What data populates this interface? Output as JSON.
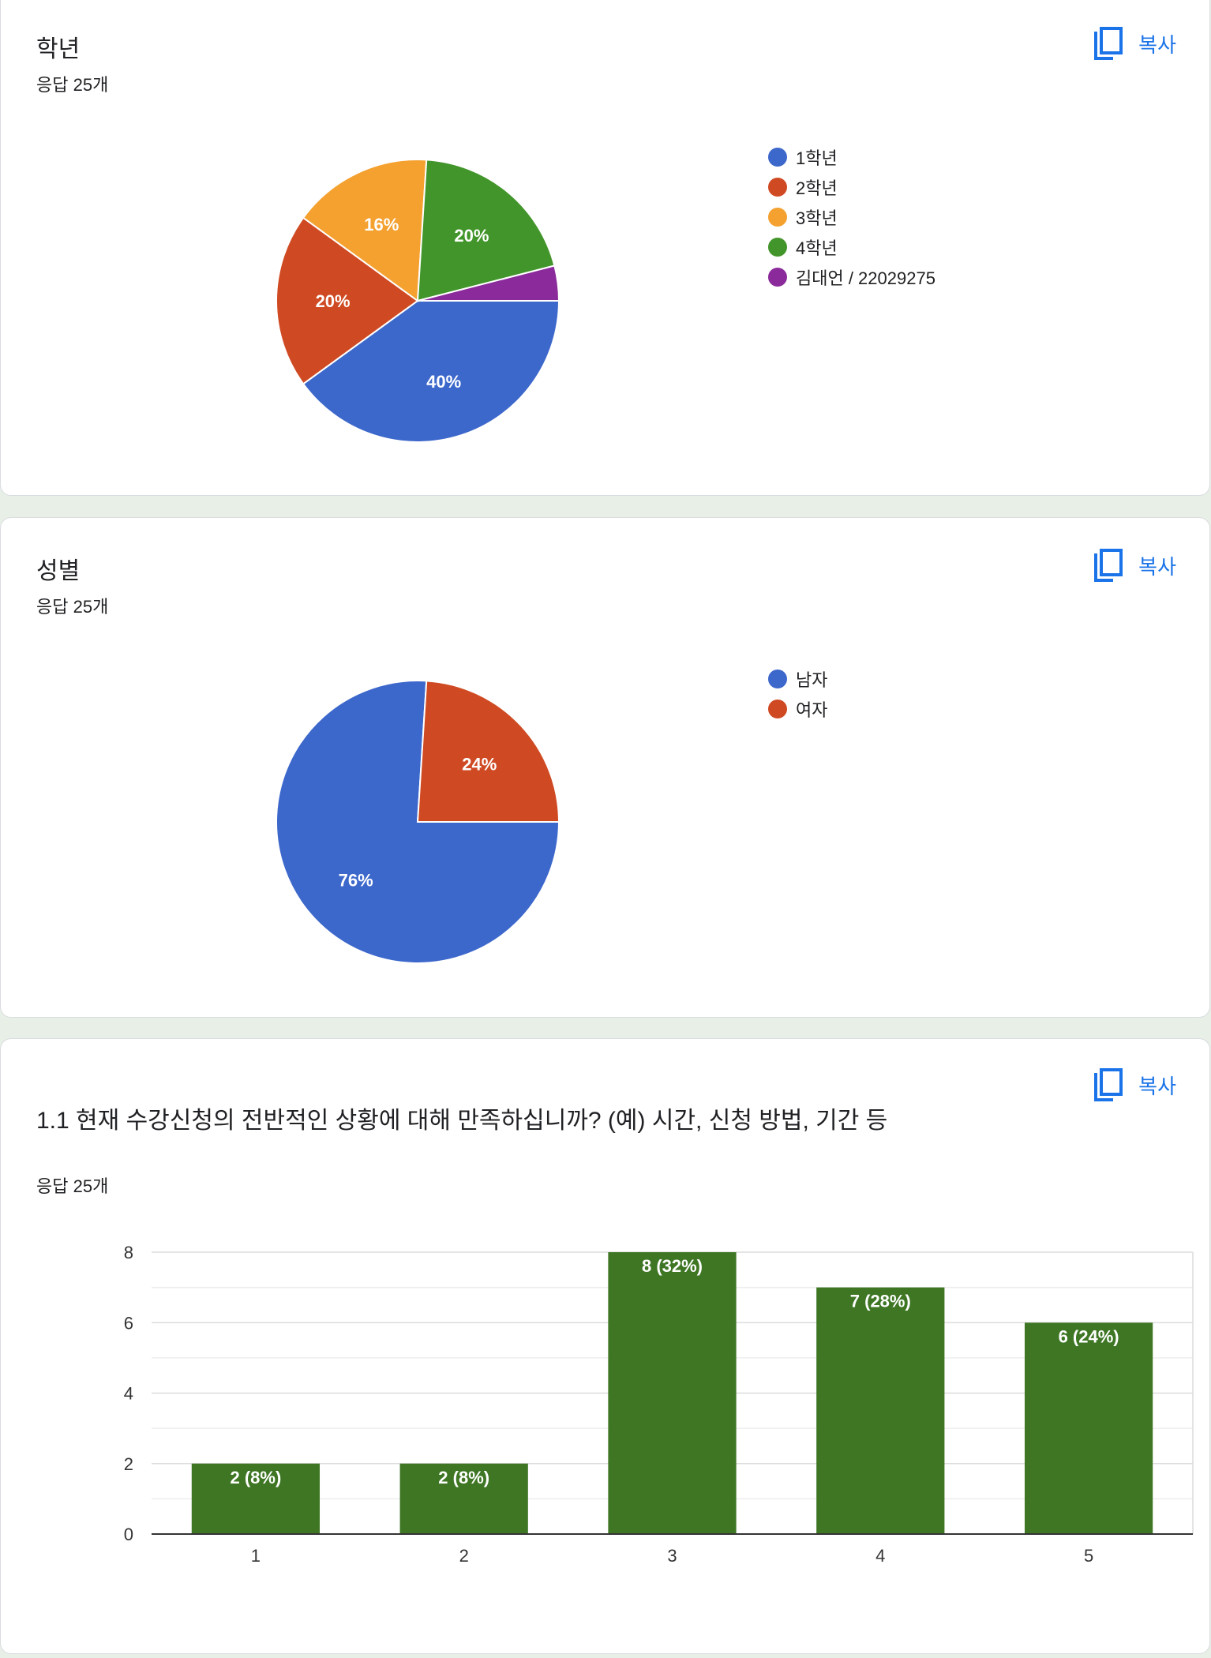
{
  "copy_label": "복사",
  "cards": [
    {
      "title": "학년",
      "responses": "응답 25개",
      "legend": [
        {
          "label": "1학년",
          "color": "#3c67cb"
        },
        {
          "label": "2학년",
          "color": "#cf4a23"
        },
        {
          "label": "3학년",
          "color": "#f4a130"
        },
        {
          "label": "4학년",
          "color": "#42952a"
        },
        {
          "label": "김대언 / 22029275",
          "color": "#8b2a9b"
        }
      ]
    },
    {
      "title": "성별",
      "responses": "응답 25개",
      "legend": [
        {
          "label": "남자",
          "color": "#3c67cb"
        },
        {
          "label": "여자",
          "color": "#cf4a23"
        }
      ]
    },
    {
      "title": "1.1 현재 수강신청의 전반적인 상황에 대해 만족하십니까? (예) 시간, 신청 방법, 기간 등",
      "responses": "응답 25개"
    }
  ],
  "chart_data": [
    {
      "type": "pie",
      "categories": [
        "1학년",
        "2학년",
        "3학년",
        "4학년",
        "김대언 / 22029275"
      ],
      "values": [
        10,
        5,
        4,
        5,
        1
      ],
      "labels": [
        "40%",
        "20%",
        "16%",
        "20%",
        ""
      ],
      "colors": [
        "#3c67cb",
        "#cf4a23",
        "#f4a130",
        "#42952a",
        "#8b2a9b"
      ],
      "legend_position": "right"
    },
    {
      "type": "pie",
      "categories": [
        "남자",
        "여자"
      ],
      "values": [
        19,
        6
      ],
      "labels": [
        "76%",
        "24%"
      ],
      "colors": [
        "#3c67cb",
        "#cf4a23"
      ],
      "legend_position": "right"
    },
    {
      "type": "bar",
      "categories": [
        "1",
        "2",
        "3",
        "4",
        "5"
      ],
      "values": [
        2,
        2,
        8,
        7,
        6
      ],
      "labels": [
        "2 (8%)",
        "2 (8%)",
        "8 (32%)",
        "7 (28%)",
        "6 (24%)"
      ],
      "ylim": [
        0,
        8
      ],
      "yticks": [
        0,
        2,
        4,
        6,
        8
      ],
      "grid": true,
      "color": "#3e7624"
    }
  ]
}
